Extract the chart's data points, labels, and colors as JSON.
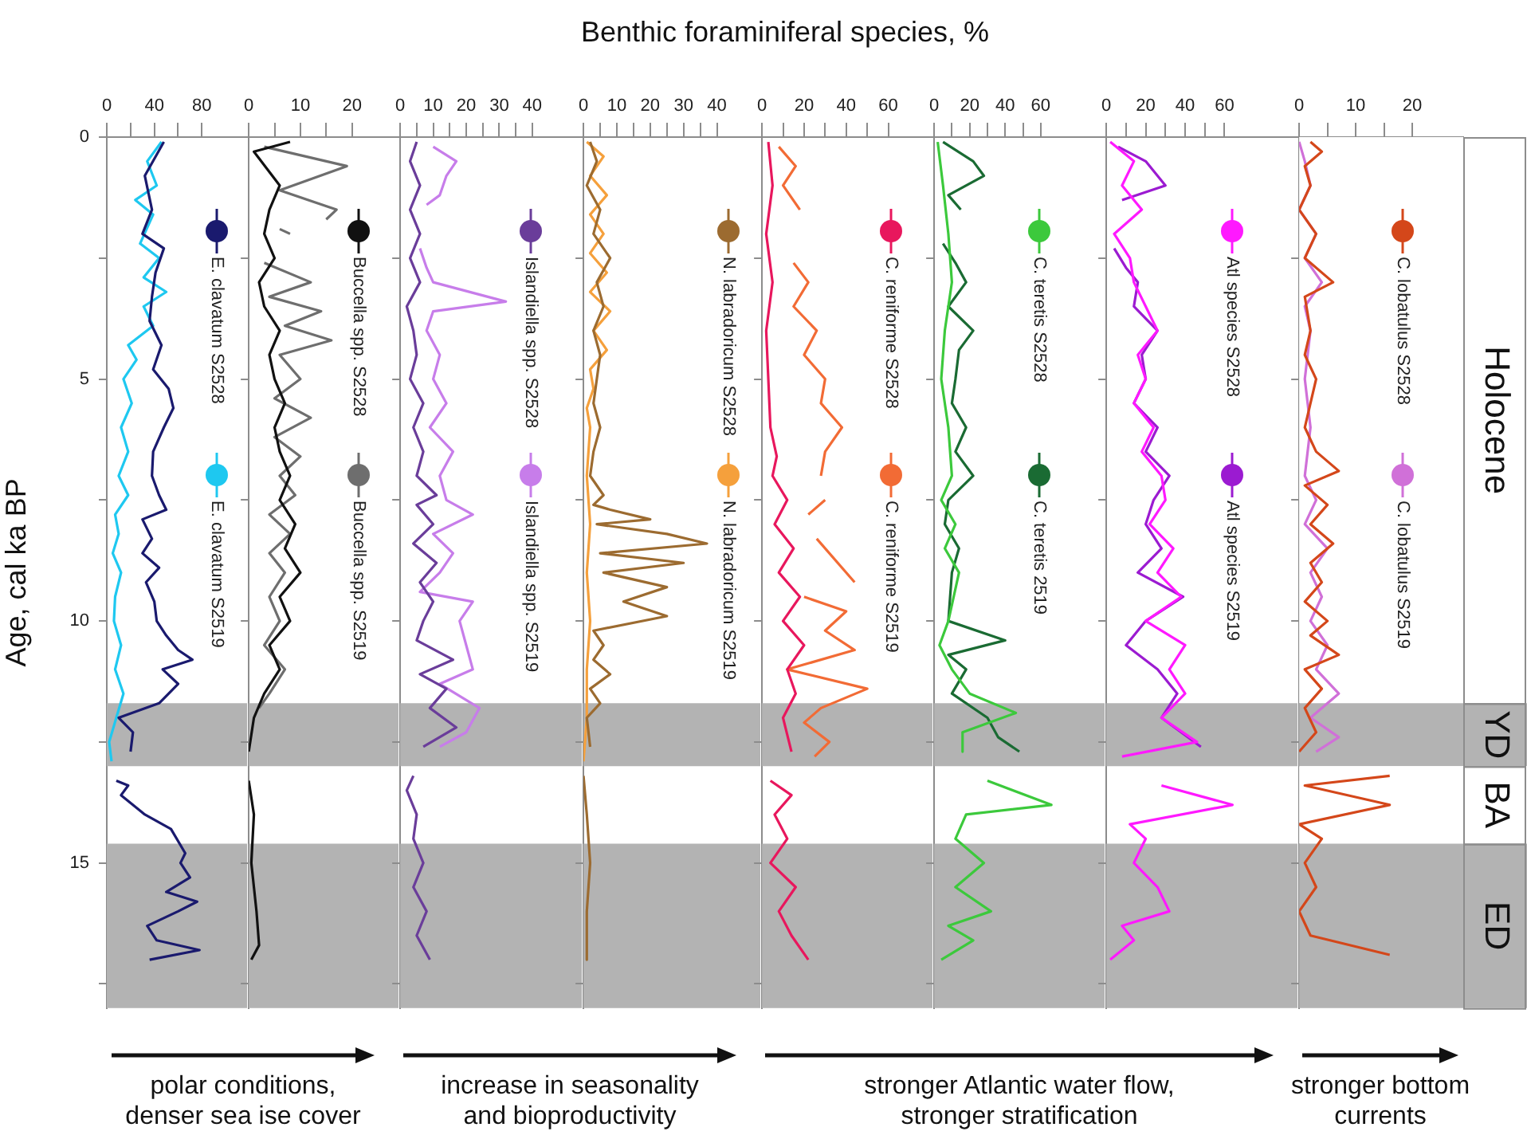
{
  "chart_data": [
    {
      "type": "line",
      "ylabel": "Age, cal ka BP",
      "xlim": [
        0,
        118
      ],
      "xticks": [
        0,
        {
          "value": 20,
          "label": null
        },
        40,
        {
          "value": 60,
          "label": null
        },
        80
      ],
      "ylim": [
        18,
        0
      ],
      "yticks": [
        0,
        {
          "value": 2.5,
          "label": null
        },
        5,
        {
          "value": 7.5,
          "label": null
        },
        10,
        {
          "value": 12.5,
          "label": null
        },
        15,
        {
          "value": 17.5,
          "label": null
        }
      ],
      "legend": "top right",
      "marker": "none",
      "annotations": [
        "polar conditions,\ndenser sea ise cover"
      ],
      "bands": [
        {
          "axis": "y",
          "from": 11.7,
          "to": 13.0,
          "color": "#b3b3b3"
        },
        {
          "axis": "y",
          "from": 14.6,
          "to": 18,
          "color": "#b3b3b3"
        }
      ],
      "series": [
        {
          "name": "E. clavatum S2528",
          "color": "#1a1a6e",
          "x": [
            48,
            32,
            38,
            30,
            48,
            41,
            38,
            36,
            46,
            39,
            52,
            56,
            48,
            39,
            38,
            44,
            50,
            30,
            38,
            30,
            44,
            33,
            40,
            42,
            50,
            60,
            72,
            47,
            60,
            44,
            10,
            22,
            20,
            null,
            8,
            18,
            12,
            32,
            54,
            66,
            62,
            70,
            50,
            76,
            60,
            34,
            42,
            78,
            36
          ],
          "values": [
            0.1,
            0.8,
            1.5,
            2.0,
            2.3,
            2.8,
            3.3,
            3.8,
            4.3,
            4.8,
            5.2,
            5.6,
            6.0,
            6.5,
            7.0,
            7.4,
            7.7,
            7.9,
            8.3,
            8.6,
            8.9,
            9.2,
            9.6,
            10.0,
            10.3,
            10.6,
            10.8,
            11.0,
            11.3,
            11.7,
            12.0,
            12.3,
            12.7,
            null,
            13.3,
            13.4,
            13.6,
            14.0,
            14.3,
            14.8,
            15.0,
            15.3,
            15.6,
            15.8,
            16.0,
            16.3,
            16.6,
            16.8,
            17.0
          ]
        },
        {
          "name": "E. clavatum S2519",
          "color": "#1ec8f0",
          "x": [
            46,
            34,
            42,
            24,
            39,
            28,
            44,
            31,
            50,
            31,
            39,
            18,
            25,
            14,
            21,
            12,
            18,
            10,
            18,
            7,
            10,
            5,
            12,
            7,
            6,
            12,
            7,
            14,
            8,
            2,
            4
          ],
          "values": [
            0.1,
            0.5,
            1.0,
            1.3,
            1.6,
            2.2,
            2.5,
            2.9,
            3.2,
            3.5,
            3.9,
            4.3,
            4.6,
            5.0,
            5.5,
            6.0,
            6.5,
            7.0,
            7.4,
            7.8,
            8.2,
            8.6,
            9.0,
            9.5,
            10.0,
            10.5,
            11.0,
            11.5,
            12.0,
            12.5,
            12.9
          ]
        }
      ]
    },
    {
      "type": "line",
      "xlim": [
        0,
        29
      ],
      "xticks": [
        0,
        {
          "value": 5,
          "label": null
        },
        10,
        {
          "value": 15,
          "label": null
        },
        20
      ],
      "ylim": [
        18,
        0
      ],
      "yticks": [
        0,
        {
          "value": 2.5,
          "label": null
        },
        5,
        {
          "value": 7.5,
          "label": null
        },
        10,
        {
          "value": 12.5,
          "label": null
        },
        15,
        {
          "value": 17.5,
          "label": null
        }
      ],
      "tick_labels": "x",
      "legend": "top right",
      "marker": "none",
      "bands": [
        {
          "axis": "y",
          "from": 11.7,
          "to": 13.0,
          "color": "#b3b3b3"
        },
        {
          "axis": "y",
          "from": 14.6,
          "to": 18,
          "color": "#b3b3b3"
        }
      ],
      "series": [
        {
          "name": "Buccella spp. S2528",
          "color": "#111111",
          "x": [
            8,
            1,
            6,
            4,
            3,
            5,
            2,
            3,
            6,
            4,
            5,
            7,
            5,
            6,
            8,
            6,
            9,
            7,
            10,
            6,
            8,
            4,
            6,
            3,
            1,
            0,
            null,
            0,
            1,
            0.5,
            1.5,
            2,
            0.5
          ],
          "values": [
            0.1,
            0.3,
            1.0,
            1.5,
            2.0,
            2.5,
            3.0,
            3.5,
            4.0,
            4.5,
            5.0,
            5.5,
            6.0,
            6.5,
            7.0,
            7.5,
            8.0,
            8.5,
            9.0,
            9.5,
            10.0,
            10.5,
            11.0,
            11.5,
            12.0,
            12.7,
            null,
            13.3,
            14.0,
            15.0,
            16.0,
            16.7,
            17.0
          ]
        },
        {
          "name": "Buccella spp. S2519",
          "color": "#6e6e6e",
          "x": [
            3,
            19,
            6,
            17,
            15,
            null,
            6,
            8,
            null,
            3,
            12,
            4,
            14,
            7,
            16,
            6,
            10,
            5,
            12,
            5,
            10,
            6,
            9,
            4,
            8,
            4,
            7,
            4,
            6,
            3,
            7,
            4,
            2
          ],
          "values": [
            0.2,
            0.6,
            1.1,
            1.5,
            1.7,
            null,
            1.9,
            2.0,
            null,
            2.6,
            3.0,
            3.3,
            3.6,
            3.9,
            4.2,
            4.5,
            5.0,
            5.4,
            5.8,
            6.2,
            6.6,
            7.0,
            7.4,
            7.8,
            8.2,
            8.6,
            9.0,
            9.5,
            10.0,
            10.5,
            11.0,
            11.5,
            11.8
          ]
        }
      ]
    },
    {
      "type": "line",
      "xlim": [
        0,
        55
      ],
      "xticks": [
        0,
        {
          "value": 5,
          "label": null
        },
        10,
        {
          "value": 15,
          "label": null
        },
        20,
        {
          "value": 25,
          "label": null
        },
        30,
        {
          "value": 35,
          "label": null
        },
        40
      ],
      "ylim": [
        18,
        0
      ],
      "yticks": [
        0,
        {
          "value": 2.5,
          "label": null
        },
        5,
        {
          "value": 7.5,
          "label": null
        },
        10,
        {
          "value": 12.5,
          "label": null
        },
        15,
        {
          "value": 17.5,
          "label": null
        }
      ],
      "tick_labels": "x",
      "legend": "top right",
      "marker": "none",
      "annotations": [
        "increase in seasonality\nand bioproductivity"
      ],
      "bands": [
        {
          "axis": "y",
          "from": 11.7,
          "to": 13.0,
          "color": "#b3b3b3"
        },
        {
          "axis": "y",
          "from": 14.6,
          "to": 18,
          "color": "#b3b3b3"
        }
      ],
      "series": [
        {
          "name": "Islandiella spp. S2528",
          "color": "#6a3d9a",
          "x": [
            5,
            3,
            6,
            3,
            6,
            3,
            6,
            2,
            4,
            5,
            3,
            7,
            4,
            7,
            5,
            11,
            5,
            10,
            4,
            11,
            6,
            10,
            7,
            5,
            16,
            6,
            14,
            9,
            17,
            7,
            null,
            4,
            2,
            5,
            4,
            7,
            4,
            8,
            5,
            9
          ],
          "values": [
            0.1,
            0.5,
            1.0,
            1.5,
            2.0,
            2.5,
            3.0,
            3.5,
            4.0,
            4.5,
            5.0,
            5.5,
            6.0,
            6.5,
            7.0,
            7.4,
            7.6,
            8.0,
            8.4,
            8.8,
            9.2,
            9.6,
            10.0,
            10.4,
            10.8,
            11.1,
            11.4,
            11.8,
            12.2,
            12.6,
            null,
            13.2,
            13.5,
            14.0,
            14.5,
            15.0,
            15.5,
            16.0,
            16.5,
            17.0
          ]
        },
        {
          "name": "Islandiella spp. S2519",
          "color": "#c77dea",
          "x": [
            10,
            17,
            14,
            12,
            8,
            null,
            6,
            8,
            10,
            32,
            10,
            8,
            12,
            10,
            14,
            9,
            16,
            12,
            14,
            22,
            10,
            16,
            12,
            6,
            22,
            18,
            20,
            22,
            12,
            24,
            20,
            12
          ],
          "values": [
            0.2,
            0.5,
            0.8,
            1.2,
            1.4,
            null,
            2.3,
            2.7,
            3.0,
            3.4,
            3.6,
            4.0,
            4.5,
            5.0,
            5.5,
            6.0,
            6.5,
            7.0,
            7.5,
            7.8,
            8.2,
            8.6,
            9.0,
            9.4,
            9.6,
            10.0,
            10.5,
            11.0,
            11.3,
            11.8,
            12.3,
            12.6
          ]
        }
      ]
    },
    {
      "type": "line",
      "xlim": [
        0,
        53
      ],
      "xticks": [
        0,
        {
          "value": 5,
          "label": null
        },
        10,
        {
          "value": 15,
          "label": null
        },
        20,
        {
          "value": 25,
          "label": null
        },
        30,
        {
          "value": 35,
          "label": null
        },
        40
      ],
      "ylim": [
        18,
        0
      ],
      "yticks": [
        0,
        {
          "value": 2.5,
          "label": null
        },
        5,
        {
          "value": 7.5,
          "label": null
        },
        10,
        {
          "value": 12.5,
          "label": null
        },
        15,
        {
          "value": 17.5,
          "label": null
        }
      ],
      "tick_labels": "x",
      "legend": "top right",
      "marker": "none",
      "bands": [
        {
          "axis": "y",
          "from": 11.7,
          "to": 13.0,
          "color": "#b3b3b3"
        },
        {
          "axis": "y",
          "from": 14.6,
          "to": 18,
          "color": "#b3b3b3"
        }
      ],
      "series": [
        {
          "name": "N. labradoricum S2528",
          "color": "#9c6b30",
          "x": [
            2,
            4,
            1,
            5,
            3,
            8,
            4,
            6,
            3,
            5,
            4,
            3,
            5,
            3,
            2,
            6,
            3,
            8,
            20,
            4,
            25,
            37,
            5,
            30,
            6,
            25,
            12,
            25,
            3,
            6,
            3,
            8,
            2,
            5,
            1,
            2,
            null,
            0,
            1,
            2,
            1,
            1
          ],
          "values": [
            0.1,
            0.5,
            1.0,
            1.5,
            2.0,
            2.5,
            3.0,
            3.5,
            4.0,
            4.5,
            5.0,
            5.5,
            6.0,
            6.5,
            7.0,
            7.4,
            7.6,
            7.7,
            7.9,
            8.0,
            8.2,
            8.4,
            8.6,
            8.8,
            9.0,
            9.3,
            9.6,
            9.9,
            10.2,
            10.5,
            10.8,
            11.1,
            11.4,
            11.7,
            12.0,
            12.6,
            null,
            13.2,
            14.0,
            15.0,
            16.0,
            17.0
          ]
        },
        {
          "name": "N. labradoricum S2519",
          "color": "#f5a03c",
          "x": [
            1,
            6,
            2,
            7,
            2,
            6,
            2,
            7,
            2,
            8,
            3,
            7,
            2,
            3,
            1,
            2,
            1,
            2,
            1,
            2,
            1,
            1,
            0
          ],
          "values": [
            0.1,
            0.4,
            0.8,
            1.2,
            1.6,
            2.0,
            2.4,
            2.8,
            3.2,
            3.6,
            4.0,
            4.4,
            4.8,
            5.2,
            5.6,
            6.0,
            7.0,
            8.0,
            9.0,
            10.0,
            11.0,
            12.0,
            12.9
          ]
        }
      ]
    },
    {
      "type": "line",
      "title": "Benthic foraminiferal species, %",
      "xlim": [
        0,
        81
      ],
      "xticks": [
        0,
        {
          "value": 10,
          "label": null
        },
        20,
        {
          "value": 30,
          "label": null
        },
        40,
        {
          "value": 50,
          "label": null
        },
        60
      ],
      "ylim": [
        18,
        0
      ],
      "yticks": [
        0,
        {
          "value": 2.5,
          "label": null
        },
        5,
        {
          "value": 7.5,
          "label": null
        },
        10,
        {
          "value": 12.5,
          "label": null
        },
        15,
        {
          "value": 17.5,
          "label": null
        }
      ],
      "tick_labels": "x",
      "legend": "top right",
      "marker": "none",
      "annotations": [
        "stronger Atlantic water flow,\nstronger stratification"
      ],
      "bands": [
        {
          "axis": "y",
          "from": 11.7,
          "to": 13.0,
          "color": "#b3b3b3"
        },
        {
          "axis": "y",
          "from": 14.6,
          "to": 18,
          "color": "#b3b3b3"
        }
      ],
      "series": [
        {
          "name": "C. reniforme S2528",
          "color": "#e8175d",
          "x": [
            3,
            5,
            2,
            5,
            2,
            3,
            4,
            7,
            5,
            12,
            6,
            15,
            8,
            18,
            10,
            20,
            12,
            16,
            10,
            14,
            null,
            4,
            14,
            6,
            12,
            4,
            16,
            8,
            14,
            22
          ],
          "values": [
            0.1,
            1,
            2,
            3,
            4,
            5,
            6,
            6.6,
            7,
            7.5,
            8,
            8.5,
            9,
            9.5,
            10,
            10.5,
            11,
            11.5,
            12,
            12.7,
            null,
            13.3,
            13.6,
            14.0,
            14.5,
            15,
            15.5,
            16,
            16.5,
            17
          ]
        },
        {
          "name": "C. reniforme S2519",
          "color": "#f26b35",
          "x": [
            8,
            16,
            10,
            18,
            null,
            15,
            22,
            15,
            26,
            20,
            30,
            28,
            38,
            30,
            28,
            null,
            30,
            22,
            null,
            26,
            44,
            null,
            20,
            40,
            30,
            44,
            12,
            50,
            28,
            20,
            32,
            25
          ],
          "values": [
            0.2,
            0.6,
            1.0,
            1.5,
            null,
            2.6,
            3.0,
            3.5,
            4.0,
            4.5,
            5.0,
            5.5,
            6.0,
            6.5,
            7.0,
            null,
            7.5,
            7.8,
            null,
            8.3,
            9.2,
            null,
            9.5,
            9.8,
            10.2,
            10.6,
            11.0,
            11.4,
            11.8,
            12.1,
            12.5,
            12.8
          ]
        }
      ]
    },
    {
      "type": "line",
      "xlim": [
        0,
        96
      ],
      "xticks": [
        0,
        {
          "value": 10,
          "label": null
        },
        20,
        {
          "value": 30,
          "label": null
        },
        40,
        {
          "value": 50,
          "label": null
        },
        60
      ],
      "ylim": [
        18,
        0
      ],
      "yticks": [
        0,
        {
          "value": 2.5,
          "label": null
        },
        5,
        {
          "value": 7.5,
          "label": null
        },
        10,
        {
          "value": 12.5,
          "label": null
        },
        15,
        {
          "value": 17.5,
          "label": null
        }
      ],
      "tick_labels": "x",
      "legend": "top right",
      "marker": "none",
      "bands": [
        {
          "axis": "y",
          "from": 11.7,
          "to": 13.0,
          "color": "#b3b3b3"
        },
        {
          "axis": "y",
          "from": 14.6,
          "to": 18,
          "color": "#b3b3b3"
        }
      ],
      "series": [
        {
          "name": "C. teretis S2528",
          "color": "#3cc93c",
          "x": [
            2,
            5,
            8,
            10,
            6,
            4,
            8,
            10,
            4,
            12,
            6,
            14,
            8,
            3,
            10,
            20,
            46,
            16,
            16,
            null,
            30,
            66,
            18,
            12,
            28,
            12,
            32,
            8,
            22,
            4
          ],
          "values": [
            0.1,
            1,
            2,
            3,
            4,
            5,
            6,
            7,
            7.5,
            8,
            8.5,
            9,
            10,
            10.5,
            11,
            11.5,
            11.9,
            12.3,
            12.7,
            null,
            13.3,
            13.8,
            14.0,
            14.5,
            15.0,
            15.5,
            16.0,
            16.3,
            16.6,
            17.0
          ]
        },
        {
          "name": "C. teretis 2519",
          "color": "#1a6b33",
          "x": [
            5,
            22,
            28,
            8,
            15,
            null,
            5,
            12,
            18,
            8,
            22,
            14,
            12,
            10,
            18,
            12,
            22,
            8,
            6,
            14,
            10,
            8,
            40,
            8,
            18,
            10,
            30,
            36,
            48
          ],
          "values": [
            0.1,
            0.5,
            0.8,
            1.2,
            1.5,
            null,
            2.2,
            2.6,
            3.0,
            3.5,
            4.0,
            4.4,
            5.0,
            5.5,
            6.0,
            6.5,
            7.0,
            7.5,
            8.0,
            8.5,
            9.0,
            10.0,
            10.4,
            10.7,
            11.0,
            11.5,
            12.0,
            12.4,
            12.7
          ]
        }
      ]
    },
    {
      "type": "line",
      "xlim": [
        0,
        97
      ],
      "xticks": [
        0,
        {
          "value": 10,
          "label": null
        },
        20,
        {
          "value": 30,
          "label": null
        },
        40,
        {
          "value": 50,
          "label": null
        },
        60
      ],
      "ylim": [
        18,
        0
      ],
      "yticks": [
        0,
        {
          "value": 2.5,
          "label": null
        },
        5,
        {
          "value": 7.5,
          "label": null
        },
        10,
        {
          "value": 12.5,
          "label": null
        },
        15,
        {
          "value": 17.5,
          "label": null
        }
      ],
      "tick_labels": "x",
      "legend": "top right",
      "marker": "none",
      "bands": [
        {
          "axis": "y",
          "from": 11.7,
          "to": 13.0,
          "color": "#b3b3b3"
        },
        {
          "axis": "y",
          "from": 14.6,
          "to": 18,
          "color": "#b3b3b3"
        }
      ],
      "series": [
        {
          "name": "Atl species S2528",
          "color": "#ff19ff",
          "x": [
            2,
            14,
            8,
            18,
            4,
            12,
            14,
            20,
            26,
            16,
            20,
            14,
            24,
            18,
            28,
            30,
            22,
            34,
            26,
            38,
            20,
            40,
            32,
            40,
            28,
            46,
            8,
            null,
            28,
            64,
            12,
            20,
            14,
            26,
            32,
            8,
            14,
            2
          ],
          "values": [
            0.1,
            0.5,
            1,
            1.5,
            2,
            2.5,
            3,
            3.5,
            4,
            4.5,
            5,
            5.5,
            6,
            6.5,
            7,
            7.5,
            8,
            8.5,
            9,
            9.5,
            10,
            10.5,
            11,
            11.5,
            12,
            12.5,
            12.8,
            null,
            13.4,
            13.8,
            14.2,
            14.5,
            15,
            15.5,
            16,
            16.3,
            16.6,
            17
          ]
        },
        {
          "name": "Atl species S2519",
          "color": "#9b1bd1",
          "x": [
            6,
            20,
            30,
            8,
            null,
            4,
            10,
            16,
            14,
            26,
            18,
            20,
            14,
            26,
            20,
            32,
            24,
            20,
            28,
            16,
            39,
            20,
            10,
            26,
            36,
            28,
            48
          ],
          "values": [
            0.2,
            0.5,
            1.0,
            1.3,
            null,
            2.3,
            2.7,
            3.0,
            3.5,
            4,
            4.5,
            5,
            5.5,
            6,
            6.5,
            7,
            7.5,
            8,
            8.5,
            9,
            9.5,
            10,
            10.5,
            11,
            11.5,
            12,
            12.6
          ]
        }
      ]
    },
    {
      "type": "line",
      "xlim": [
        0,
        29
      ],
      "xticks": [
        0,
        {
          "value": 5,
          "label": null
        },
        10,
        {
          "value": 15,
          "label": null
        },
        20
      ],
      "ylim": [
        18,
        0
      ],
      "yticks": [
        0,
        {
          "value": 2.5,
          "label": null
        },
        5,
        {
          "value": 7.5,
          "label": null
        },
        10,
        {
          "value": 12.5,
          "label": null
        },
        15,
        {
          "value": 17.5,
          "label": null
        }
      ],
      "tick_labels": "x",
      "legend": "top right",
      "marker": "none",
      "annotations": [
        "stronger bottom\ncurrents"
      ],
      "bands": [
        {
          "axis": "y",
          "from": 0,
          "to": 11.7,
          "color": "#ffffff",
          "label": "Holocene"
        },
        {
          "axis": "y",
          "from": 11.7,
          "to": 13.0,
          "color": "#b3b3b3",
          "label": "YD"
        },
        {
          "axis": "y",
          "from": 13.0,
          "to": 14.6,
          "color": "#ffffff",
          "label": "BA"
        },
        {
          "axis": "y",
          "from": 14.6,
          "to": 18,
          "color": "#b3b3b3",
          "label": "ED"
        }
      ],
      "series": [
        {
          "name": "C. lobatulus S2528",
          "color": "#d4471a",
          "x": [
            2,
            4,
            1,
            2,
            0,
            3,
            1,
            6,
            1,
            2,
            1,
            3,
            2,
            1,
            3,
            7,
            1,
            5,
            2,
            6,
            2,
            4,
            1,
            5,
            2,
            7,
            1,
            4,
            1,
            3,
            0,
            null,
            16,
            1,
            16,
            0,
            4,
            1,
            3,
            0,
            2,
            16
          ],
          "values": [
            0.1,
            0.3,
            0.6,
            1,
            1.5,
            2,
            2.5,
            3,
            3.3,
            4,
            4.5,
            5,
            5.5,
            6,
            6.5,
            6.9,
            7.2,
            7.6,
            8.0,
            8.4,
            8.8,
            9.2,
            9.6,
            10.0,
            10.3,
            10.7,
            11.0,
            11.4,
            11.8,
            12.3,
            12.7,
            null,
            13.2,
            13.4,
            13.8,
            14.2,
            14.5,
            15.0,
            15.5,
            16.0,
            16.5,
            16.9
          ]
        },
        {
          "name": "C. lobatulus S2519",
          "color": "#d070d8",
          "x": [
            0,
            1,
            2,
            0,
            3,
            1,
            4,
            1,
            2,
            1,
            2,
            1,
            3,
            1,
            5,
            2,
            4,
            2,
            5,
            3,
            7,
            2,
            7,
            3
          ],
          "values": [
            0.1,
            0.5,
            1,
            1.5,
            2,
            2.5,
            3,
            3.5,
            4,
            5,
            6,
            7,
            7.5,
            8,
            8.5,
            9,
            9.5,
            10,
            10.5,
            11,
            11.5,
            12,
            12.4,
            12.7
          ]
        }
      ]
    }
  ]
}
